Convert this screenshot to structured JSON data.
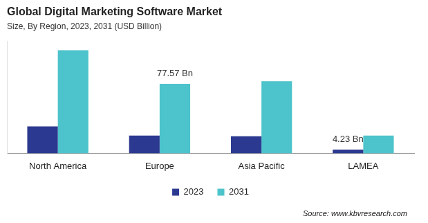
{
  "chart_data": {
    "type": "bar",
    "title": "Global Digital Marketing Software Market",
    "subtitle": "Size, By Region, 2023, 2031 (USD Billion)",
    "annotations": [
      "Source: www.kbvresearch.com"
    ],
    "categories": [
      "North America",
      "Europe",
      "Asia Pacific",
      "LAMEA"
    ],
    "series": [
      {
        "name": "2023",
        "color": "#2b3990",
        "values": [
          30,
          19.8,
          19,
          4.23
        ],
        "value_labels": [
          null,
          null,
          null,
          "4.23 Bn"
        ]
      },
      {
        "name": "2031",
        "color": "#4dc3cb",
        "values": [
          115,
          77.57,
          80.5,
          19.8
        ],
        "value_labels": [
          null,
          "77.57 Bn",
          null,
          null
        ]
      }
    ],
    "ylim": [
      0,
      125
    ],
    "grid": false,
    "legend": "bottom",
    "data_labels": true,
    "tick_labels": "x"
  }
}
